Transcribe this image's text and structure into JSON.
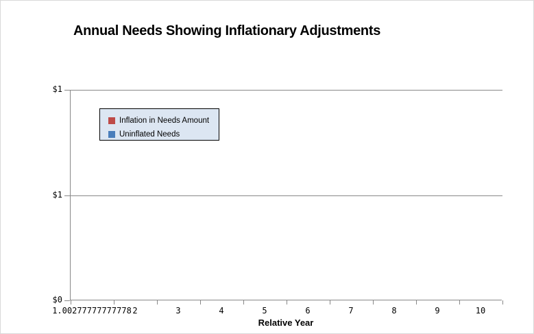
{
  "window": {
    "background_color": "#ffffff",
    "border_color": "#d9d9d9"
  },
  "chart": {
    "title": "Annual Needs Showing Inflationary Adjustments",
    "axis_color": "#878787",
    "legend": {
      "background_color": "#dce6f2",
      "border_color": "#000000",
      "items": [
        {
          "label": "Inflation in Needs Amount",
          "color": "#be4b48",
          "icon": "red-square-swatch"
        },
        {
          "label": "Uninflated Needs",
          "color": "#4a7ebb",
          "icon": "blue-square-swatch"
        }
      ]
    },
    "x_axis": {
      "title": "Relative Year",
      "tick_labels": [
        "1.00277777777778",
        "2",
        "3",
        "4",
        "5",
        "6",
        "7",
        "8",
        "9",
        "10"
      ]
    },
    "y_axis": {
      "tick_labels_top_to_bottom": [
        "$1",
        "$1",
        "$0"
      ]
    }
  },
  "chart_data": {
    "type": "bar",
    "title": "Annual Needs Showing Inflationary Adjustments",
    "xlabel": "Relative Year",
    "ylabel": "",
    "categories": [
      "1.00277777777778",
      "2",
      "3",
      "4",
      "5",
      "6",
      "7",
      "8",
      "9",
      "10"
    ],
    "series": [
      {
        "name": "Inflation in Needs Amount",
        "color": "#be4b48",
        "values": [
          0,
          0,
          0,
          0,
          0,
          0,
          0,
          0,
          0,
          0
        ]
      },
      {
        "name": "Uninflated Needs",
        "color": "#4a7ebb",
        "values": [
          0,
          0,
          0,
          0,
          0,
          0,
          0,
          0,
          0,
          0
        ]
      }
    ],
    "ylim": [
      0,
      1
    ],
    "y_tick_values": [
      0,
      0.5,
      1
    ],
    "y_tick_labels_bottom_to_top": [
      "$0",
      "$1",
      "$1"
    ],
    "grid": true,
    "legend_position": "inside-top-left",
    "note": "no bars visibly rendered above the baseline"
  }
}
